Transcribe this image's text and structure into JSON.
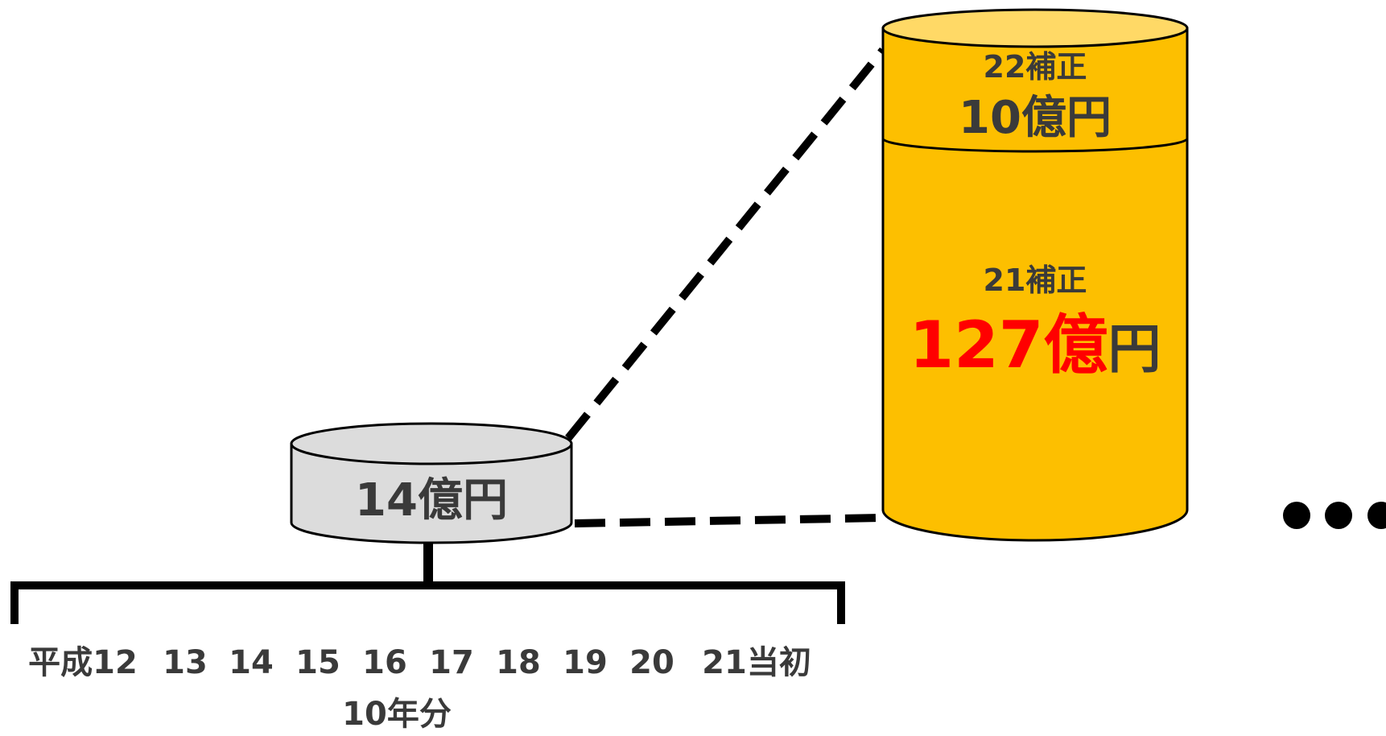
{
  "small_cylinder": {
    "label": "14億円",
    "fill": "#dcdcdc"
  },
  "big_cylinder": {
    "top_segment": {
      "caption": "22補正",
      "amount": "10億円"
    },
    "bottom_segment": {
      "caption": "21補正",
      "amount_number": "127億",
      "amount_unit": "円"
    },
    "fill": "#fdbf00",
    "top_fill": "#ffd966",
    "amount_color": "#ff0000"
  },
  "timeline": {
    "labels": [
      "平成12",
      "13",
      "14",
      "15",
      "16",
      "17",
      "18",
      "19",
      "20",
      "21当初"
    ],
    "caption": "10年分"
  },
  "continuation": "•••"
}
